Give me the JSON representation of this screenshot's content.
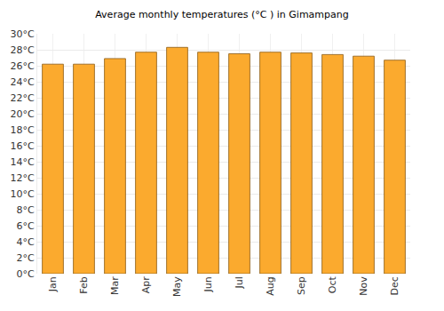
{
  "chart_data": {
    "type": "bar",
    "title": "Average monthly temperatures (°C ) in Gimampang",
    "categories": [
      "Jan",
      "Feb",
      "Mar",
      "Apr",
      "May",
      "Jun",
      "Jul",
      "Aug",
      "Sep",
      "Oct",
      "Nov",
      "Dec"
    ],
    "values": [
      26.2,
      26.2,
      26.9,
      27.7,
      28.3,
      27.7,
      27.5,
      27.7,
      27.6,
      27.4,
      27.2,
      26.7
    ],
    "color": "#fbaa2e",
    "ylim": [
      0,
      30
    ],
    "yticks": [
      {
        "value": 0,
        "label": "0°C"
      },
      {
        "value": 2,
        "label": "2°C"
      },
      {
        "value": 4,
        "label": "4°C"
      },
      {
        "value": 6,
        "label": "6°C"
      },
      {
        "value": 8,
        "label": "8°C"
      },
      {
        "value": 10,
        "label": "10°C"
      },
      {
        "value": 12,
        "label": "12°C"
      },
      {
        "value": 14,
        "label": "14°C"
      },
      {
        "value": 16,
        "label": "16°C"
      },
      {
        "value": 18,
        "label": "18°C"
      },
      {
        "value": 20,
        "label": "20°C"
      },
      {
        "value": 22,
        "label": "22°C"
      },
      {
        "value": 24,
        "label": "24°C"
      },
      {
        "value": 26,
        "label": "26°C"
      },
      {
        "value": 28,
        "label": "28°C"
      },
      {
        "value": 30,
        "label": "30°C"
      }
    ],
    "grid": true
  }
}
